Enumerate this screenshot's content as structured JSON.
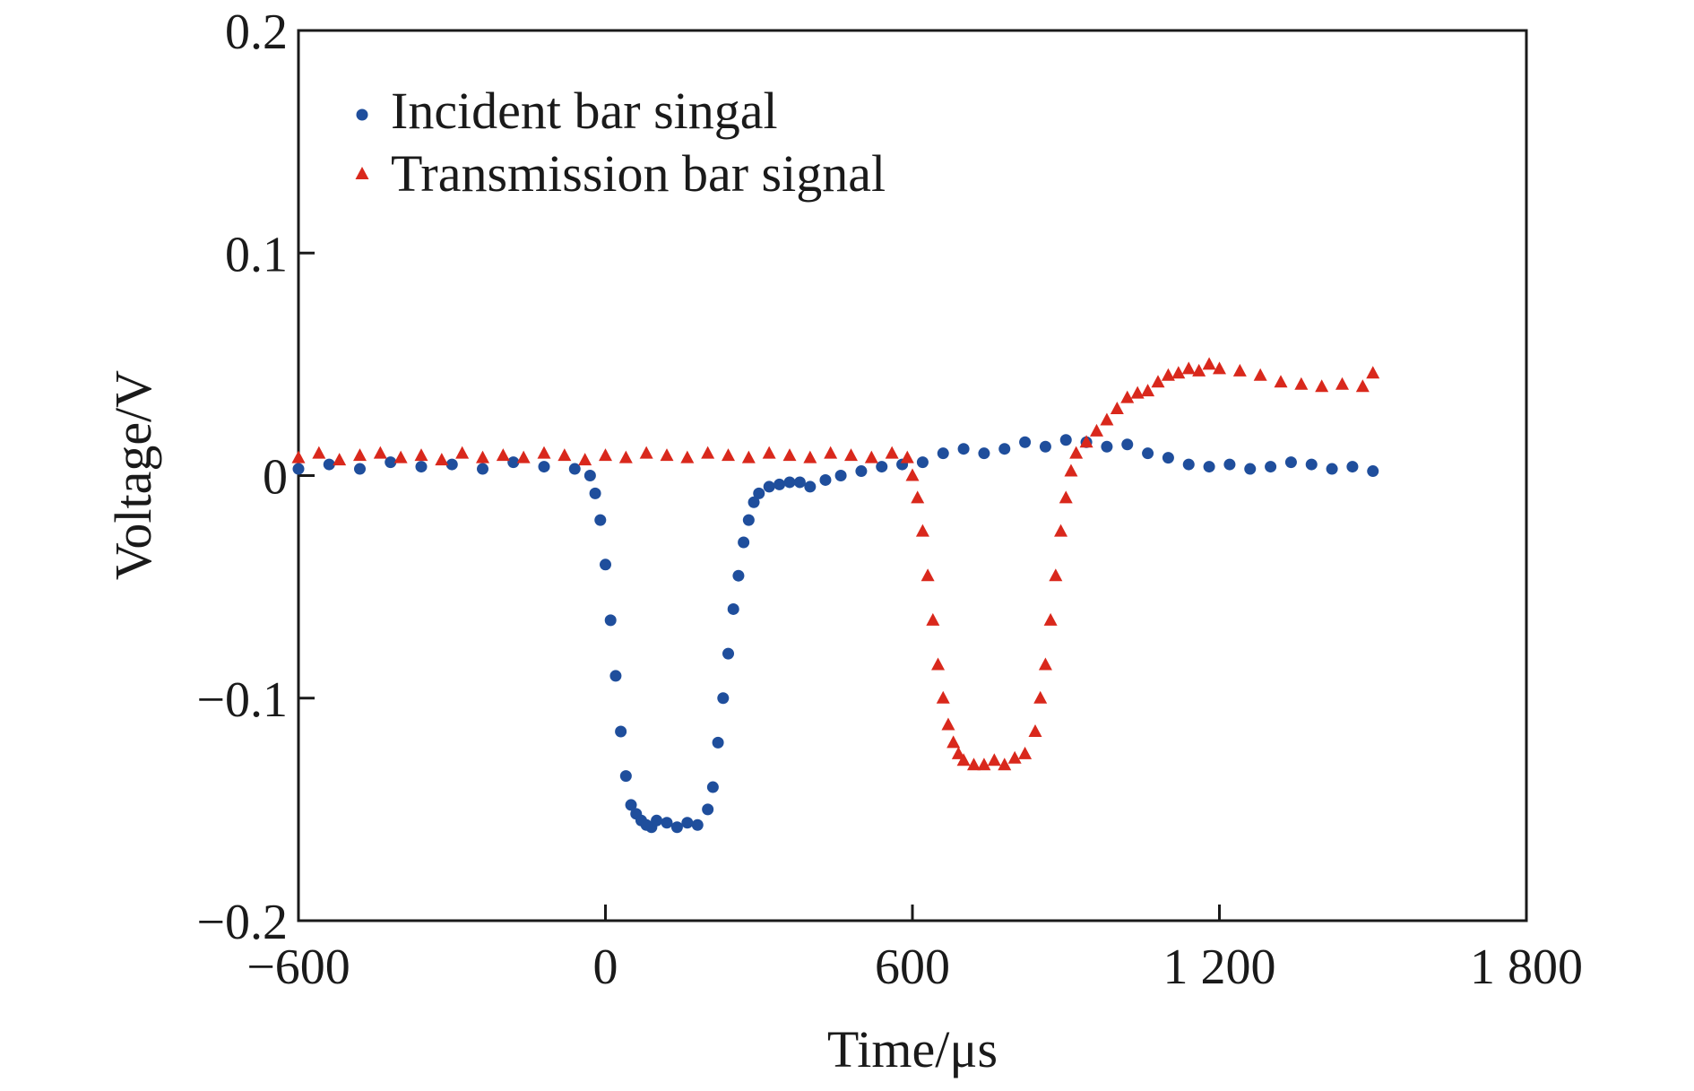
{
  "chart_data": {
    "type": "scatter",
    "title": "",
    "xlabel": "Time/μs",
    "ylabel": "Voltage/V",
    "xlim": [
      -600,
      1800
    ],
    "ylim": [
      -0.2,
      0.2
    ],
    "x_ticks": [
      -600,
      0,
      600,
      1200,
      1800
    ],
    "x_tick_labels": [
      "−600",
      "0",
      "600",
      "1 200",
      "1 800"
    ],
    "y_ticks": [
      0.2,
      0.1,
      0,
      -0.1,
      -0.2
    ],
    "y_tick_labels": [
      "0.2",
      "0.1",
      "0",
      "−0.1",
      "−0.2"
    ],
    "grid": false,
    "legend_position": "top-left",
    "series": [
      {
        "name": "Incident bar singal",
        "marker": "circle",
        "color": "#1f4e9c",
        "x": [
          -600,
          -540,
          -480,
          -420,
          -360,
          -300,
          -240,
          -180,
          -120,
          -60,
          -30,
          -20,
          -10,
          0,
          10,
          20,
          30,
          40,
          50,
          60,
          70,
          80,
          90,
          100,
          120,
          140,
          160,
          180,
          200,
          210,
          220,
          230,
          240,
          250,
          260,
          270,
          280,
          290,
          300,
          320,
          340,
          360,
          380,
          400,
          430,
          460,
          500,
          540,
          580,
          620,
          660,
          700,
          740,
          780,
          820,
          860,
          900,
          940,
          980,
          1020,
          1060,
          1100,
          1140,
          1180,
          1220,
          1260,
          1300,
          1340,
          1380,
          1420,
          1460,
          1500
        ],
        "y": [
          0.003,
          0.005,
          0.003,
          0.006,
          0.004,
          0.005,
          0.003,
          0.006,
          0.004,
          0.003,
          0.0,
          -0.008,
          -0.02,
          -0.04,
          -0.065,
          -0.09,
          -0.115,
          -0.135,
          -0.148,
          -0.152,
          -0.155,
          -0.157,
          -0.158,
          -0.155,
          -0.156,
          -0.158,
          -0.156,
          -0.157,
          -0.15,
          -0.14,
          -0.12,
          -0.1,
          -0.08,
          -0.06,
          -0.045,
          -0.03,
          -0.02,
          -0.012,
          -0.008,
          -0.005,
          -0.004,
          -0.003,
          -0.003,
          -0.005,
          -0.002,
          0.0,
          0.002,
          0.004,
          0.005,
          0.006,
          0.01,
          0.012,
          0.01,
          0.012,
          0.015,
          0.013,
          0.016,
          0.015,
          0.013,
          0.014,
          0.01,
          0.008,
          0.005,
          0.004,
          0.005,
          0.003,
          0.004,
          0.006,
          0.005,
          0.003,
          0.004,
          0.002
        ]
      },
      {
        "name": "Transmission bar signal",
        "marker": "triangle",
        "color": "#d9281c",
        "x": [
          -600,
          -560,
          -520,
          -480,
          -440,
          -400,
          -360,
          -320,
          -280,
          -240,
          -200,
          -160,
          -120,
          -80,
          -40,
          0,
          40,
          80,
          120,
          160,
          200,
          240,
          280,
          320,
          360,
          400,
          440,
          480,
          520,
          560,
          590,
          600,
          610,
          620,
          630,
          640,
          650,
          660,
          670,
          680,
          690,
          700,
          720,
          740,
          760,
          780,
          800,
          820,
          840,
          850,
          860,
          870,
          880,
          890,
          900,
          910,
          920,
          940,
          960,
          980,
          1000,
          1020,
          1040,
          1060,
          1080,
          1100,
          1120,
          1140,
          1160,
          1180,
          1200,
          1240,
          1280,
          1320,
          1360,
          1400,
          1440,
          1480,
          1500
        ],
        "y": [
          0.008,
          0.01,
          0.007,
          0.009,
          0.01,
          0.008,
          0.009,
          0.007,
          0.01,
          0.008,
          0.009,
          0.008,
          0.01,
          0.009,
          0.007,
          0.009,
          0.008,
          0.01,
          0.009,
          0.008,
          0.01,
          0.009,
          0.008,
          0.01,
          0.009,
          0.008,
          0.01,
          0.009,
          0.008,
          0.01,
          0.008,
          0.0,
          -0.01,
          -0.025,
          -0.045,
          -0.065,
          -0.085,
          -0.1,
          -0.112,
          -0.12,
          -0.125,
          -0.128,
          -0.13,
          -0.13,
          -0.128,
          -0.13,
          -0.127,
          -0.125,
          -0.115,
          -0.1,
          -0.085,
          -0.065,
          -0.045,
          -0.025,
          -0.01,
          0.002,
          0.01,
          0.015,
          0.02,
          0.025,
          0.03,
          0.035,
          0.037,
          0.038,
          0.042,
          0.045,
          0.046,
          0.048,
          0.047,
          0.05,
          0.048,
          0.047,
          0.045,
          0.042,
          0.041,
          0.04,
          0.041,
          0.04,
          0.046
        ]
      }
    ]
  }
}
